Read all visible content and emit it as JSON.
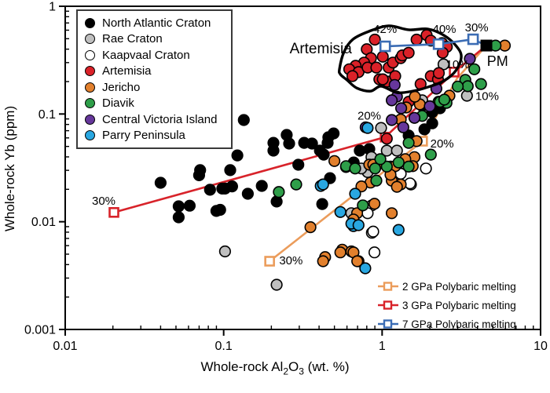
{
  "axes": {
    "xlabel_parts": [
      {
        "t": "Whole-rock Al"
      },
      {
        "t": "2",
        "sub": true
      },
      {
        "t": "O"
      },
      {
        "t": "3",
        "sub": true
      },
      {
        "t": " (wt. %)"
      }
    ],
    "ylabel": "Whole-rock Yb (ppm)",
    "x_tick_labels": [
      "0.01",
      "0.1",
      "1",
      "10"
    ],
    "y_tick_labels": [
      "1",
      "0.1",
      "0.01",
      "0.001"
    ]
  },
  "legend": {
    "items": [
      {
        "label": "North Atlantic Craton",
        "color": "#000000"
      },
      {
        "label": "Rae Craton",
        "color": "#bfbfbf"
      },
      {
        "label": "Kaapvaal Craton",
        "color": "#ffffff"
      },
      {
        "label": "Artemisia",
        "color": "#da2128"
      },
      {
        "label": "Jericho",
        "color": "#e2802d"
      },
      {
        "label": "Diavik",
        "color": "#2e9e49"
      },
      {
        "label": "Central Victoria Island",
        "color": "#66379b"
      },
      {
        "label": "Parry Peninsula",
        "color": "#29a7e1"
      }
    ]
  },
  "melt_legend": {
    "items": [
      {
        "label": "2 GPa Polybaric melting",
        "color": "#eb9c5b"
      },
      {
        "label": "3 GPa Polybaric melting",
        "color": "#d8232a"
      },
      {
        "label": "7 GPa Polybaric melting",
        "color": "#3b6cb4"
      }
    ]
  },
  "chart_data": {
    "type": "scatter",
    "xscale": "log",
    "yscale": "log",
    "xlim": [
      0.01,
      10
    ],
    "ylim": [
      0.001,
      1
    ],
    "x_ticks": [
      0.01,
      0.1,
      1,
      10
    ],
    "y_ticks": [
      1,
      0.1,
      0.01,
      0.001
    ],
    "series": [
      {
        "name": "North Atlantic Craton",
        "color": "#000000",
        "points": [
          [
            0.134,
            0.088
          ],
          [
            0.07,
            0.027
          ],
          [
            0.04,
            0.023
          ],
          [
            0.082,
            0.0198
          ],
          [
            0.098,
            0.0203
          ],
          [
            0.052,
            0.0139
          ],
          [
            0.061,
            0.0141
          ],
          [
            0.052,
            0.011
          ],
          [
            0.09,
            0.0126
          ],
          [
            0.122,
            0.0413
          ],
          [
            0.071,
            0.0301
          ],
          [
            0.25,
            0.064
          ],
          [
            0.206,
            0.054
          ],
          [
            0.259,
            0.0532
          ],
          [
            0.322,
            0.054
          ],
          [
            0.361,
            0.0532
          ],
          [
            0.206,
            0.0457
          ],
          [
            0.405,
            0.0457
          ],
          [
            0.428,
            0.042
          ],
          [
            0.458,
            0.0608
          ],
          [
            0.494,
            0.066
          ],
          [
            0.453,
            0.054
          ],
          [
            0.296,
            0.0338
          ],
          [
            0.11,
            0.0301
          ],
          [
            0.102,
            0.0203
          ],
          [
            0.113,
            0.0213
          ],
          [
            0.142,
            0.0182
          ],
          [
            0.174,
            0.0215
          ],
          [
            0.216,
            0.0154
          ],
          [
            0.095,
            0.0129
          ],
          [
            0.419,
            0.0146
          ],
          [
            1.79,
            0.119
          ],
          [
            2.07,
            0.104
          ],
          [
            2.32,
            0.113
          ],
          [
            1.85,
            0.072
          ],
          [
            1.47,
            0.0632
          ],
          [
            0.83,
            0.0473
          ],
          [
            0.723,
            0.0457
          ],
          [
            0.662,
            0.0339
          ],
          [
            0.592,
            0.0322
          ],
          [
            0.469,
            0.0254
          ],
          [
            0.662,
            0.0355
          ],
          [
            2.07,
            0.082
          ]
        ]
      },
      {
        "name": "Rae Craton",
        "color": "#bfbfbf",
        "points": [
          [
            0.985,
            0.0743
          ],
          [
            1.07,
            0.0457
          ],
          [
            0.857,
            0.0398
          ],
          [
            1.24,
            0.0457
          ],
          [
            0.81,
            0.0289
          ],
          [
            0.739,
            0.0312
          ],
          [
            0.639,
            0.012
          ],
          [
            0.102,
            0.0053
          ],
          [
            0.216,
            0.0026
          ],
          [
            3.43,
            0.148
          ],
          [
            1.79,
            0.134
          ],
          [
            2.44,
            0.289
          ]
        ]
      },
      {
        "name": "Kaapvaal Craton",
        "color": "#ffffff",
        "points": [
          [
            1.13,
            0.0325
          ],
          [
            1.24,
            0.0301
          ],
          [
            1.52,
            0.0222
          ],
          [
            1.89,
            0.0312
          ],
          [
            1.31,
            0.0279
          ],
          [
            1.5,
            0.0227
          ],
          [
            0.862,
            0.0142
          ],
          [
            0.81,
            0.012
          ],
          [
            0.862,
            0.0079
          ],
          [
            0.879,
            0.0081
          ],
          [
            0.895,
            0.0052
          ]
        ]
      },
      {
        "name": "Artemisia",
        "color": "#da2128",
        "points": [
          [
            0.9,
            0.49
          ],
          [
            0.8,
            0.4
          ],
          [
            1.01,
            0.34
          ],
          [
            0.85,
            0.33
          ],
          [
            0.77,
            0.3
          ],
          [
            0.68,
            0.28
          ],
          [
            0.62,
            0.26
          ],
          [
            0.71,
            0.245
          ],
          [
            0.81,
            0.27
          ],
          [
            0.92,
            0.27
          ],
          [
            1.1,
            0.27
          ],
          [
            1.17,
            0.3
          ],
          [
            1.31,
            0.33
          ],
          [
            1.34,
            0.35
          ],
          [
            1.47,
            0.37
          ],
          [
            1.65,
            0.49
          ],
          [
            1.91,
            0.54
          ],
          [
            2.03,
            0.48
          ],
          [
            2.39,
            0.455
          ],
          [
            2.56,
            0.42
          ],
          [
            2.41,
            0.37
          ],
          [
            2.03,
            0.225
          ],
          [
            2.25,
            0.21
          ],
          [
            1.75,
            0.19
          ],
          [
            0.96,
            0.21
          ],
          [
            1.08,
            0.2
          ],
          [
            1.21,
            0.225
          ],
          [
            0.65,
            0.225
          ],
          [
            2.28,
            0.24
          ],
          [
            1.47,
            0.13
          ],
          [
            1.07,
            0.059
          ],
          [
            1.01,
            0.21
          ]
        ]
      },
      {
        "name": "Jericho",
        "color": "#e2802d",
        "points": [
          [
            1.42,
            0.115
          ],
          [
            1.73,
            0.123
          ],
          [
            1.31,
            0.089
          ],
          [
            1.65,
            0.056
          ],
          [
            0.95,
            0.0345
          ],
          [
            0.83,
            0.0339
          ],
          [
            1.15,
            0.0241
          ],
          [
            1.6,
            0.0398
          ],
          [
            0.5,
            0.0366
          ],
          [
            0.88,
            0.0339
          ],
          [
            1.21,
            0.0328
          ],
          [
            1.4,
            0.0381
          ],
          [
            1.56,
            0.0328
          ],
          [
            1.13,
            0.0273
          ],
          [
            1.31,
            0.0222
          ],
          [
            1.24,
            0.0211
          ],
          [
            0.845,
            0.0231
          ],
          [
            0.74,
            0.0213
          ],
          [
            0.695,
            0.012
          ],
          [
            0.66,
            0.0105
          ],
          [
            0.895,
            0.0147
          ],
          [
            1.15,
            0.012
          ],
          [
            0.56,
            0.0055
          ],
          [
            0.64,
            0.0053
          ],
          [
            0.66,
            0.0052
          ],
          [
            0.71,
            0.0043
          ],
          [
            0.437,
            0.0047
          ],
          [
            0.424,
            0.0043
          ],
          [
            0.545,
            0.0052
          ],
          [
            0.697,
            0.0043
          ],
          [
            2.66,
            0.148
          ],
          [
            5.95,
            0.432
          ],
          [
            0.353,
            0.0089
          ],
          [
            1.61,
            0.145
          ]
        ]
      },
      {
        "name": "Diavik",
        "color": "#2e9e49",
        "points": [
          [
            5.2,
            0.432
          ],
          [
            3.82,
            0.26
          ],
          [
            3.35,
            0.207
          ],
          [
            3.47,
            0.181
          ],
          [
            4.21,
            0.19
          ],
          [
            2.27,
            0.13
          ],
          [
            2.55,
            0.127
          ],
          [
            2.32,
            0.13
          ],
          [
            1.47,
            0.054
          ],
          [
            2.03,
            0.042
          ],
          [
            1.27,
            0.0355
          ],
          [
            1.47,
            0.0325
          ],
          [
            1.07,
            0.0325
          ],
          [
            0.92,
            0.0241
          ],
          [
            0.592,
            0.0328
          ],
          [
            0.676,
            0.0312
          ],
          [
            0.903,
            0.0312
          ],
          [
            0.975,
            0.0381
          ],
          [
            0.756,
            0.0142
          ],
          [
            0.223,
            0.0189
          ],
          [
            0.287,
            0.0222
          ],
          [
            3.0,
            0.18
          ],
          [
            2.47,
            0.136
          ],
          [
            1.79,
            0.096
          ]
        ]
      },
      {
        "name": "Central Victoria Island",
        "color": "#66379b",
        "points": [
          [
            3.58,
            0.325
          ],
          [
            1.15,
            0.088
          ],
          [
            1.36,
            0.0753
          ],
          [
            0.787,
            0.0753
          ],
          [
            1.6,
            0.092
          ],
          [
            1.24,
            0.145
          ],
          [
            1.15,
            0.134
          ],
          [
            2.2,
            0.172
          ],
          [
            1.2,
            0.186
          ],
          [
            1.32,
            0.113
          ],
          [
            2.0,
            0.118
          ]
        ]
      },
      {
        "name": "Parry Peninsula",
        "color": "#29a7e1",
        "points": [
          [
            0.81,
            0.0743
          ],
          [
            0.41,
            0.0215
          ],
          [
            0.545,
            0.0123
          ],
          [
            0.424,
            0.0222
          ],
          [
            0.676,
            0.0182
          ],
          [
            0.66,
            0.0091
          ],
          [
            1.27,
            0.0084
          ],
          [
            0.64,
            0.0096
          ],
          [
            0.71,
            0.0093
          ],
          [
            0.783,
            0.0037
          ]
        ]
      }
    ],
    "melt_curves": [
      {
        "name": "2 GPa Polybaric melting",
        "color": "#eb9c5b",
        "z": "under",
        "vertices": [
          [
            4.55,
            0.432
          ],
          [
            2.97,
            0.214
          ],
          [
            1.8,
            0.0559
          ],
          [
            0.195,
            0.0043
          ]
        ],
        "markers": [
          [
            1.8,
            0.0559
          ],
          [
            0.195,
            0.0043
          ]
        ]
      },
      {
        "name": "3 GPa Polybaric melting",
        "color": "#d8232a",
        "z": "under",
        "vertices": [
          [
            4.55,
            0.432
          ],
          [
            2.85,
            0.245
          ],
          [
            1.045,
            0.061
          ],
          [
            0.0203,
            0.0122
          ]
        ],
        "markers": [
          [
            2.85,
            0.245
          ],
          [
            1.045,
            0.061
          ],
          [
            0.0203,
            0.0122
          ]
        ]
      },
      {
        "name": "7 GPa Polybaric melting",
        "color": "#3b6cb4",
        "z": "over",
        "vertices": [
          [
            4.55,
            0.432
          ],
          [
            3.75,
            0.494
          ],
          [
            2.27,
            0.445
          ],
          [
            1.045,
            0.425
          ]
        ],
        "markers": [
          [
            3.75,
            0.494
          ],
          [
            2.27,
            0.445
          ],
          [
            1.045,
            0.425
          ]
        ]
      }
    ],
    "pm_point": {
      "label": "PM",
      "x": 4.55,
      "y": 0.432
    },
    "field_outline": {
      "name": "Artemisia field",
      "points": [
        [
          0.538,
          0.261
        ],
        [
          0.575,
          0.378
        ],
        [
          0.655,
          0.494
        ],
        [
          0.826,
          0.585
        ],
        [
          1.1,
          0.658
        ],
        [
          1.47,
          0.605
        ],
        [
          1.95,
          0.615
        ],
        [
          2.45,
          0.538
        ],
        [
          2.92,
          0.432
        ],
        [
          3.16,
          0.342
        ],
        [
          2.92,
          0.253
        ],
        [
          2.45,
          0.203
        ],
        [
          1.95,
          0.178
        ],
        [
          1.56,
          0.163
        ],
        [
          1.24,
          0.158
        ],
        [
          0.985,
          0.181
        ],
        [
          0.845,
          0.163
        ],
        [
          0.693,
          0.174
        ],
        [
          0.6,
          0.207
        ],
        [
          0.546,
          0.233
        ]
      ]
    },
    "annotations": [
      {
        "text": "42%",
        "x": 1.045,
        "y": 0.615,
        "size": 15
      },
      {
        "text": "40%",
        "x": 2.47,
        "y": 0.615,
        "size": 15
      },
      {
        "text": "30%",
        "x": 3.95,
        "y": 0.636,
        "size": 15
      },
      {
        "text": "10%",
        "x": 3.0,
        "y": 0.29,
        "size": 15
      },
      {
        "text": "10%",
        "x": 4.6,
        "y": 0.147,
        "size": 15
      },
      {
        "text": "20%",
        "x": 0.83,
        "y": 0.097,
        "size": 15
      },
      {
        "text": "20%",
        "x": 2.39,
        "y": 0.0534,
        "size": 15
      },
      {
        "text": "30%",
        "x": 0.266,
        "y": 0.0044,
        "size": 15
      },
      {
        "text": "30%",
        "x": 0.0175,
        "y": 0.0157,
        "size": 15
      },
      {
        "text": "PM",
        "x": 5.35,
        "y": 0.31,
        "size": 18
      },
      {
        "text": "Artemisia",
        "x": 0.41,
        "y": 0.41,
        "size": 19
      }
    ]
  }
}
